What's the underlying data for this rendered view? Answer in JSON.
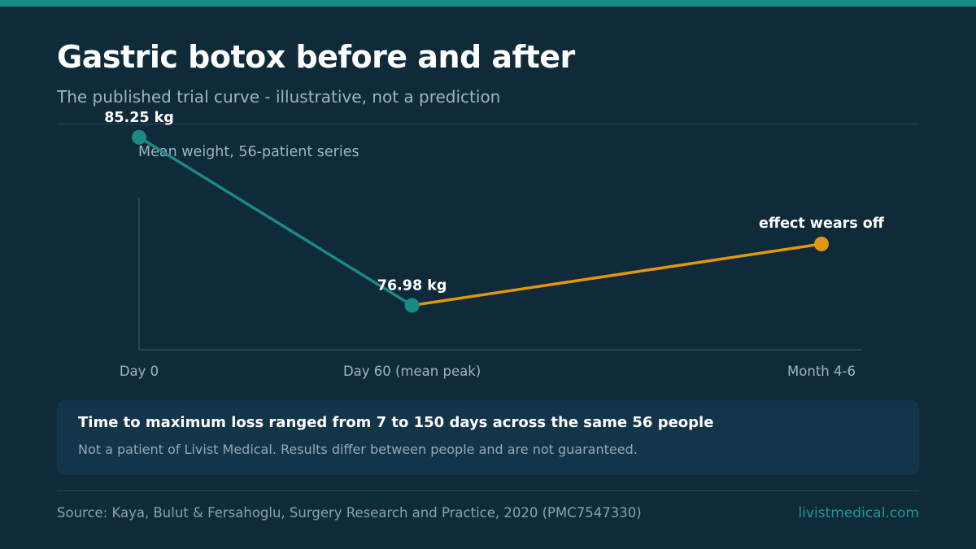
{
  "header": {
    "title": "Gastric botox before and after",
    "subtitle": "The published trial curve - illustrative, not a prediction"
  },
  "colors": {
    "background": "#0f2b3a",
    "accent_teal": "#1a8a86",
    "accent_orange": "#e3960f",
    "panel": "#133549"
  },
  "chart_data": {
    "type": "line",
    "title": "Mean weight, 56-patient series",
    "categories": [
      "Day 0",
      "Day 60 (mean peak)",
      "Month 4-6"
    ],
    "series": [
      {
        "values": [
          85.25,
          76.98,
          null
        ],
        "color": "#1a8a86"
      },
      {
        "values": [
          null,
          76.98,
          80.0
        ],
        "color": "#e3960f"
      }
    ],
    "x": [
      0,
      60,
      150
    ],
    "data_labels": [
      "85.25 kg",
      "76.98 kg",
      "effect wears off"
    ],
    "ylim": [
      72.0,
      88.0
    ],
    "grid": false,
    "legend": "none"
  },
  "callout": {
    "title": "Time to maximum loss ranged from 7 to 150 days across the same 56 people",
    "note": "Not a patient of Livist Medical. Results differ between people and are not guaranteed."
  },
  "footer": {
    "source": "Source: Kaya, Bulut & Fersahoglu, Surgery Research and Practice, 2020 (PMC7547330)",
    "site": "livistmedical.com"
  }
}
